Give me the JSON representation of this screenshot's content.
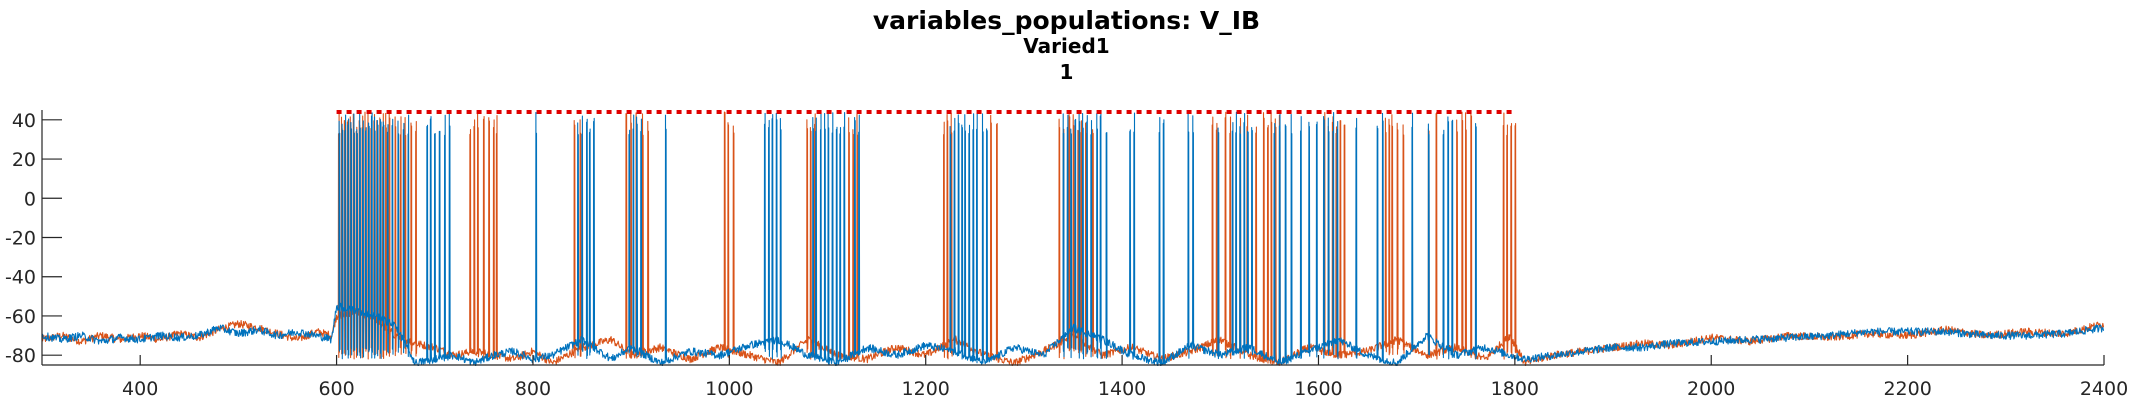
{
  "chart_data": {
    "type": "line",
    "title": "variables_populations: V_IB",
    "subtitle": "Varied1",
    "subtitle2": "1",
    "xlim": [
      300,
      2400
    ],
    "ylim": [
      -85,
      45
    ],
    "xticks": [
      400,
      600,
      800,
      1000,
      1200,
      1400,
      1600,
      1800,
      2000,
      2200,
      2400
    ],
    "yticks": [
      40,
      20,
      0,
      -20,
      -40,
      -60,
      -80
    ],
    "grid": false,
    "colors": {
      "series1": "#0072BD",
      "series2": "#D95319",
      "marker": "#E00000"
    },
    "stimulus_marker": {
      "x_start": 600,
      "x_end": 1800,
      "y": 44,
      "style": "dotted"
    },
    "series": [
      {
        "baseline": -72,
        "values": [
          [
            300,
            -70
          ],
          [
            320,
            -72
          ],
          [
            340,
            -70
          ],
          [
            360,
            -73
          ],
          [
            380,
            -71
          ],
          [
            400,
            -72
          ],
          [
            420,
            -70
          ],
          [
            440,
            -71
          ],
          [
            460,
            -70
          ],
          [
            480,
            -66
          ],
          [
            500,
            -69
          ],
          [
            520,
            -67
          ],
          [
            540,
            -70
          ],
          [
            560,
            -68
          ],
          [
            580,
            -70
          ],
          [
            595,
            -72
          ],
          [
            600,
            -55
          ],
          [
            620,
            -57
          ],
          [
            640,
            -60
          ],
          [
            660,
            -65
          ],
          [
            680,
            -84
          ],
          [
            700,
            -82
          ],
          [
            720,
            -80
          ],
          [
            740,
            -84
          ],
          [
            760,
            -80
          ],
          [
            780,
            -78
          ],
          [
            800,
            -82
          ],
          [
            820,
            -80
          ],
          [
            850,
            -72
          ],
          [
            880,
            -82
          ],
          [
            900,
            -76
          ],
          [
            930,
            -84
          ],
          [
            960,
            -78
          ],
          [
            990,
            -80
          ],
          [
            1020,
            -75
          ],
          [
            1050,
            -72
          ],
          [
            1080,
            -80
          ],
          [
            1110,
            -84
          ],
          [
            1140,
            -76
          ],
          [
            1170,
            -80
          ],
          [
            1200,
            -75
          ],
          [
            1230,
            -78
          ],
          [
            1260,
            -84
          ],
          [
            1290,
            -76
          ],
          [
            1320,
            -80
          ],
          [
            1350,
            -66
          ],
          [
            1380,
            -72
          ],
          [
            1410,
            -80
          ],
          [
            1440,
            -84
          ],
          [
            1470,
            -75
          ],
          [
            1500,
            -80
          ],
          [
            1530,
            -76
          ],
          [
            1560,
            -84
          ],
          [
            1590,
            -78
          ],
          [
            1620,
            -72
          ],
          [
            1650,
            -80
          ],
          [
            1680,
            -84
          ],
          [
            1710,
            -70
          ],
          [
            1740,
            -80
          ],
          [
            1770,
            -76
          ],
          [
            1795,
            -80
          ],
          [
            1810,
            -82
          ],
          [
            1840,
            -80
          ],
          [
            1870,
            -78
          ],
          [
            1900,
            -76
          ],
          [
            1930,
            -76
          ],
          [
            1960,
            -74
          ],
          [
            2000,
            -73
          ],
          [
            2040,
            -72
          ],
          [
            2080,
            -71
          ],
          [
            2120,
            -70
          ],
          [
            2160,
            -68
          ],
          [
            2200,
            -68
          ],
          [
            2240,
            -68
          ],
          [
            2280,
            -70
          ],
          [
            2320,
            -70
          ],
          [
            2360,
            -69
          ],
          [
            2400,
            -66
          ]
        ],
        "spikes": [
          603,
          606,
          609,
          612,
          615,
          618,
          621,
          624,
          627,
          630,
          633,
          636,
          639,
          642,
          645,
          648,
          652,
          657,
          663,
          668,
          673,
          692,
          696,
          700,
          705,
          710,
          715,
          803,
          846,
          850,
          855,
          858,
          862,
          898,
          902,
          906,
          910,
          935,
          1036,
          1040,
          1044,
          1048,
          1052,
          1085,
          1088,
          1093,
          1097,
          1101,
          1105,
          1109,
          1113,
          1117,
          1128,
          1132,
          1225,
          1229,
          1233,
          1237,
          1240,
          1244,
          1248,
          1252,
          1258,
          1262,
          1340,
          1344,
          1348,
          1352,
          1356,
          1360,
          1364,
          1368,
          1374,
          1378,
          1384,
          1408,
          1412,
          1438,
          1442,
          1467,
          1472,
          1498,
          1512,
          1516,
          1520,
          1524,
          1528,
          1532,
          1555,
          1560,
          1566,
          1572,
          1582,
          1590,
          1598,
          1605,
          1610,
          1615,
          1619,
          1638,
          1660,
          1665,
          1695,
          1712,
          1727,
          1732,
          1736,
          1760
        ]
      },
      {
        "baseline": -72,
        "values": [
          [
            300,
            -72
          ],
          [
            320,
            -70
          ],
          [
            340,
            -73
          ],
          [
            360,
            -70
          ],
          [
            380,
            -72
          ],
          [
            400,
            -70
          ],
          [
            420,
            -72
          ],
          [
            440,
            -69
          ],
          [
            460,
            -71
          ],
          [
            480,
            -67
          ],
          [
            500,
            -64
          ],
          [
            520,
            -66
          ],
          [
            540,
            -69
          ],
          [
            560,
            -72
          ],
          [
            580,
            -68
          ],
          [
            595,
            -70
          ],
          [
            600,
            -60
          ],
          [
            620,
            -58
          ],
          [
            640,
            -62
          ],
          [
            660,
            -70
          ],
          [
            680,
            -74
          ],
          [
            700,
            -76
          ],
          [
            720,
            -80
          ],
          [
            740,
            -78
          ],
          [
            760,
            -80
          ],
          [
            780,
            -82
          ],
          [
            800,
            -78
          ],
          [
            820,
            -84
          ],
          [
            850,
            -76
          ],
          [
            880,
            -72
          ],
          [
            900,
            -80
          ],
          [
            930,
            -76
          ],
          [
            960,
            -82
          ],
          [
            990,
            -76
          ],
          [
            1020,
            -80
          ],
          [
            1050,
            -84
          ],
          [
            1080,
            -72
          ],
          [
            1110,
            -80
          ],
          [
            1140,
            -82
          ],
          [
            1170,
            -76
          ],
          [
            1200,
            -80
          ],
          [
            1230,
            -72
          ],
          [
            1260,
            -80
          ],
          [
            1290,
            -84
          ],
          [
            1320,
            -78
          ],
          [
            1350,
            -70
          ],
          [
            1380,
            -80
          ],
          [
            1410,
            -76
          ],
          [
            1440,
            -82
          ],
          [
            1470,
            -78
          ],
          [
            1500,
            -72
          ],
          [
            1530,
            -80
          ],
          [
            1560,
            -84
          ],
          [
            1590,
            -76
          ],
          [
            1620,
            -80
          ],
          [
            1650,
            -78
          ],
          [
            1680,
            -72
          ],
          [
            1710,
            -80
          ],
          [
            1740,
            -76
          ],
          [
            1770,
            -82
          ],
          [
            1795,
            -70
          ],
          [
            1810,
            -84
          ],
          [
            1840,
            -80
          ],
          [
            1870,
            -78
          ],
          [
            1900,
            -76
          ],
          [
            1930,
            -74
          ],
          [
            1960,
            -75
          ],
          [
            2000,
            -71
          ],
          [
            2040,
            -73
          ],
          [
            2080,
            -70
          ],
          [
            2120,
            -71
          ],
          [
            2160,
            -69
          ],
          [
            2200,
            -70
          ],
          [
            2240,
            -67
          ],
          [
            2280,
            -70
          ],
          [
            2320,
            -68
          ],
          [
            2360,
            -69
          ],
          [
            2400,
            -64
          ]
        ],
        "spikes": [
          602,
          605,
          608,
          611,
          614,
          617,
          620,
          623,
          626,
          629,
          632,
          635,
          638,
          641,
          644,
          647,
          650,
          654,
          660,
          665,
          670,
          676,
          681,
          736,
          740,
          744,
          750,
          755,
          760,
          763,
          842,
          848,
          895,
          900,
          905,
          912,
          917,
          995,
          999,
          1004,
          1079,
          1083,
          1087,
          1122,
          1126,
          1130,
          1218,
          1222,
          1226,
          1266,
          1272,
          1336,
          1340,
          1346,
          1350,
          1355,
          1358,
          1363,
          1370,
          1492,
          1496,
          1505,
          1510,
          1520,
          1527,
          1536,
          1544,
          1548,
          1552,
          1556,
          1560,
          1606,
          1610,
          1614,
          1618,
          1622,
          1626,
          1668,
          1672,
          1675,
          1680,
          1686,
          1712,
          1720,
          1741,
          1746,
          1750,
          1755,
          1788,
          1792,
          1796,
          1800
        ]
      }
    ]
  }
}
